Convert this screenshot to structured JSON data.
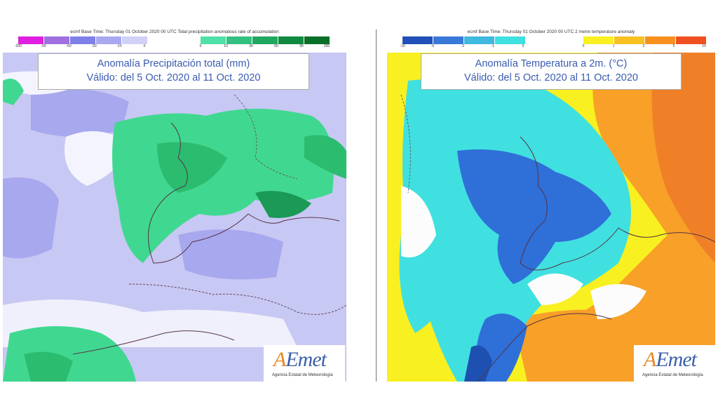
{
  "left_panel": {
    "header": "ecmf  Base Time: Thursday 01 October 2020 00 UTC  Total precipitation anomalous rate of accumulation",
    "title_line1": "Anomalía Precipitación total (mm)",
    "title_line2": "Válido: del 5 Oct. 2020 al 11 Oct. 2020",
    "legend_neg": {
      "ticks": [
        "-200",
        "-90",
        "-60",
        "-30",
        "-10",
        "0"
      ],
      "colors": [
        "#e020e0",
        "#a070e0",
        "#7f7fe8",
        "#a8a8f0",
        "#d0d0f8"
      ]
    },
    "legend_pos": {
      "ticks": [
        "0",
        "10",
        "30",
        "60",
        "90",
        "200"
      ],
      "colors": [
        "#4fe0a8",
        "#34c080",
        "#20a860",
        "#108a40",
        "#0a7028"
      ]
    }
  },
  "right_panel": {
    "header": "ecmf  Base Time: Thursday 01 October 2020 00 UTC  2 metre temperature anomaly",
    "title_line1": "Anomalía Temperatura a 2m. (°C)",
    "title_line2": "Válido: del 5 Oct. 2020 al 11 Oct. 2020",
    "legend_neg": {
      "ticks": [
        "-10",
        "-5",
        "-2",
        "-1",
        "0"
      ],
      "colors": [
        "#2050b8",
        "#3a78d8",
        "#40b8e0",
        "#40e0e0"
      ]
    },
    "legend_pos": {
      "ticks": [
        "0",
        "1",
        "2",
        "5",
        "10"
      ],
      "colors": [
        "#f8f020",
        "#f8c020",
        "#f89020",
        "#f05020"
      ]
    }
  },
  "logo": {
    "name_a": "A",
    "name_rest": "Emet",
    "subtitle": "Agencia Estatal de Meteorología"
  }
}
